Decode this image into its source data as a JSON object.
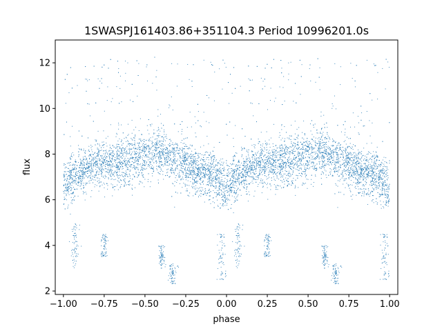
{
  "chart_data": {
    "type": "scatter",
    "title": "1SWASPJ161403.86+351104.3 Period 10996201.0s",
    "xlabel": "phase",
    "ylabel": "flux",
    "xlim": [
      -1.05,
      1.05
    ],
    "ylim": [
      1.85,
      13.0
    ],
    "xticks": [
      -1.0,
      -0.75,
      -0.5,
      -0.25,
      0.0,
      0.25,
      0.5,
      0.75,
      1.0
    ],
    "xtick_labels": [
      "−1.00",
      "−0.75",
      "−0.50",
      "−0.25",
      "0.00",
      "0.25",
      "0.50",
      "0.75",
      "1.00"
    ],
    "yticks": [
      2,
      4,
      6,
      8,
      10,
      12
    ],
    "ytick_labels": [
      "2",
      "4",
      "6",
      "8",
      "10",
      "12"
    ],
    "grid": false,
    "legend": "none",
    "marker_color": "#1f77b4",
    "series": [
      {
        "phase_range": [
          -1.0,
          1.0
        ],
        "trend_phase": [
          0.0,
          0.1,
          0.2,
          0.3,
          0.4,
          0.5,
          0.6,
          0.7,
          0.8,
          0.9,
          1.0
        ],
        "trend_flux": [
          6.7,
          7.2,
          7.6,
          7.5,
          7.7,
          8.0,
          8.1,
          7.7,
          7.3,
          7.1,
          6.6
        ],
        "scatter_sigma": 0.75,
        "dip_clusters": [
          {
            "phase": 0.07,
            "flux_range": [
              3.0,
              5.0
            ]
          },
          {
            "phase": 0.25,
            "flux_range": [
              3.5,
              4.5
            ]
          },
          {
            "phase": 0.6,
            "flux_range": [
              3.0,
              4.0
            ]
          },
          {
            "phase": 0.67,
            "flux_range": [
              2.3,
              3.2
            ]
          },
          {
            "phase": 0.97,
            "flux_range": [
              2.5,
              4.5
            ]
          }
        ],
        "outlier_max_flux": 12.2
      }
    ]
  }
}
